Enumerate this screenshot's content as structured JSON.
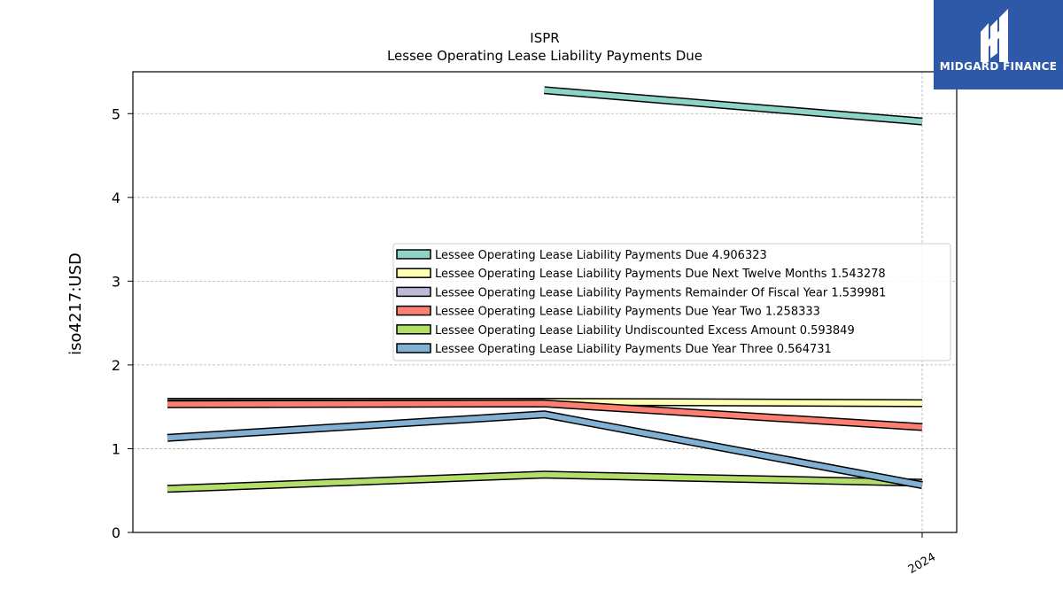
{
  "logo": {
    "text": "MIDGARD FINANCE",
    "icon": "midgard-finance-logo-icon",
    "background": "#2d59a8"
  },
  "chart_data": {
    "type": "line",
    "title": "ISPR",
    "subtitle": "Lessee Operating Lease Liability Payments Due",
    "ylabel": "iso4217:USD",
    "xlabel": "",
    "ylim": [
      0,
      5.5
    ],
    "yticks": [
      0,
      1,
      2,
      3,
      4,
      5
    ],
    "x": [
      "2022-12-31",
      "2023-12-31",
      "2024-12-31"
    ],
    "xtick_labels": [
      "",
      "",
      "2024"
    ],
    "grid": true,
    "legend_position": "center-right",
    "series": [
      {
        "name": "Lessee Operating Lease Liability Payments Due",
        "legend_value": "4.906323",
        "color": "#8dd3c7",
        "values": [
          null,
          5.28,
          4.906323
        ]
      },
      {
        "name": "Lessee Operating Lease Liability Payments Due Next Twelve Months",
        "legend_value": "1.543278",
        "color": "#ffffb3",
        "values": [
          1.56,
          1.56,
          1.543278
        ]
      },
      {
        "name": "Lessee Operating Lease Liability Payments Remainder Of Fiscal Year",
        "legend_value": "1.539981",
        "color": "#bebada",
        "values": [
          1.54,
          1.539981,
          null
        ]
      },
      {
        "name": "Lessee Operating Lease Liability Payments Due Year Two",
        "legend_value": "1.258333",
        "color": "#fb8072",
        "values": [
          1.53,
          1.54,
          1.258333
        ]
      },
      {
        "name": "Lessee Operating Lease Liability Undiscounted Excess Amount",
        "legend_value": "0.593849",
        "color": "#b3de69",
        "values": [
          0.52,
          0.69,
          0.593849
        ]
      },
      {
        "name": "Lessee Operating Lease Liability Payments Due Year Three",
        "legend_value": "0.564731",
        "color": "#80b1d3",
        "values": [
          1.13,
          1.41,
          0.564731
        ]
      }
    ]
  }
}
